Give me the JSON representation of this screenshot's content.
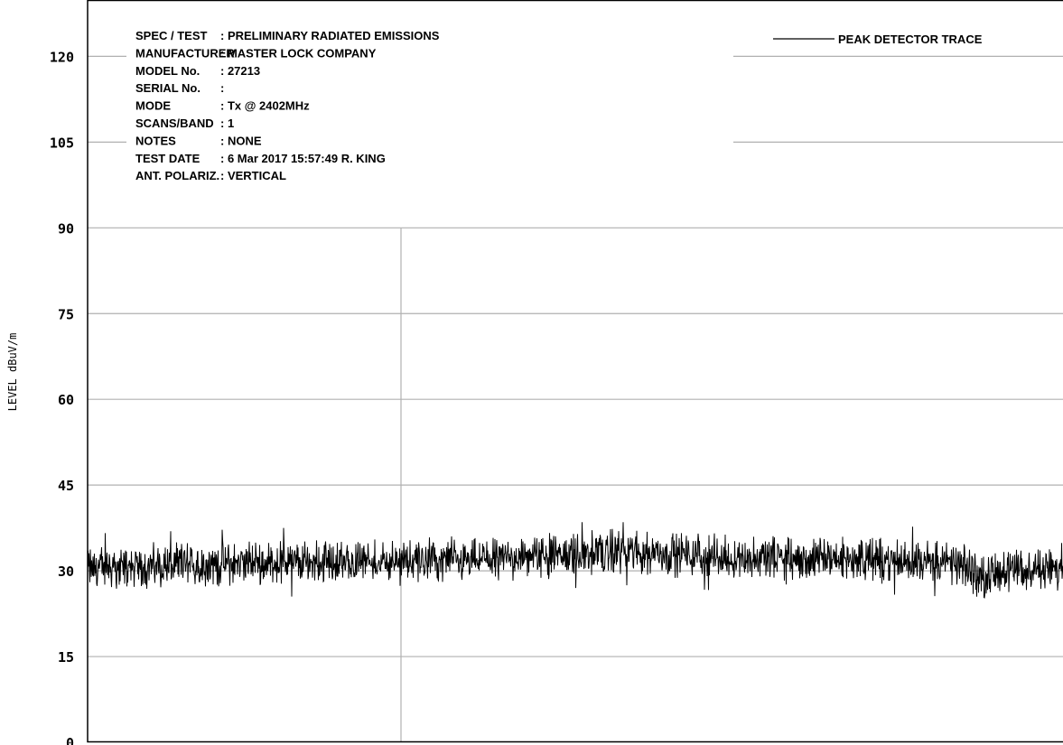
{
  "chart_data": {
    "type": "line",
    "ylabel": "LEVEL  dBuV/m",
    "xlabel": "",
    "ylim": [
      0,
      130
    ],
    "yticks": [
      0,
      15,
      30,
      45,
      60,
      75,
      90,
      105,
      120
    ],
    "ytick_labels": [
      "0",
      "15",
      "30",
      "45",
      "60",
      "75",
      "90",
      "105",
      "120"
    ],
    "grid": true,
    "legend": {
      "position": "top-right",
      "entries": [
        "PEAK  DETECTOR TRACE"
      ]
    },
    "header": [
      {
        "key": "SPEC / TEST",
        "value": ": PRELIMINARY RADIATED EMISSIONS"
      },
      {
        "key": "MANUFACTURER",
        "value": ": MASTER LOCK COMPANY"
      },
      {
        "key": "MODEL No.",
        "value": ": 27213"
      },
      {
        "key": "SERIAL No.",
        "value": ":"
      },
      {
        "key": "MODE",
        "value": ": Tx @ 2402MHz"
      },
      {
        "key": "SCANS/BAND",
        "value": ": 1"
      },
      {
        "key": "NOTES",
        "value": ": NONE"
      },
      {
        "key": "TEST DATE",
        "value": ":  6 Mar 2017 15:57:49  R. KING"
      },
      {
        "key": "ANT. POLARIZ.",
        "value": ": VERTICAL"
      }
    ],
    "series": [
      {
        "name": "PEAK  DETECTOR TRACE",
        "baseline": [
          {
            "x": 0.0,
            "y": 30.5
          },
          {
            "x": 0.1,
            "y": 31.0
          },
          {
            "x": 0.2,
            "y": 31.5
          },
          {
            "x": 0.3,
            "y": 31.5
          },
          {
            "x": 0.4,
            "y": 32.0
          },
          {
            "x": 0.5,
            "y": 33.0
          },
          {
            "x": 0.55,
            "y": 33.5
          },
          {
            "x": 0.6,
            "y": 33.0
          },
          {
            "x": 0.7,
            "y": 32.0
          },
          {
            "x": 0.8,
            "y": 32.0
          },
          {
            "x": 0.88,
            "y": 31.5
          },
          {
            "x": 0.9,
            "y": 30.5
          },
          {
            "x": 0.92,
            "y": 29.0
          },
          {
            "x": 0.95,
            "y": 30.0
          },
          {
            "x": 1.0,
            "y": 30.5
          }
        ],
        "noise_band_db": 4.5,
        "peak_max": 38.5,
        "color": "#000000"
      }
    ]
  }
}
